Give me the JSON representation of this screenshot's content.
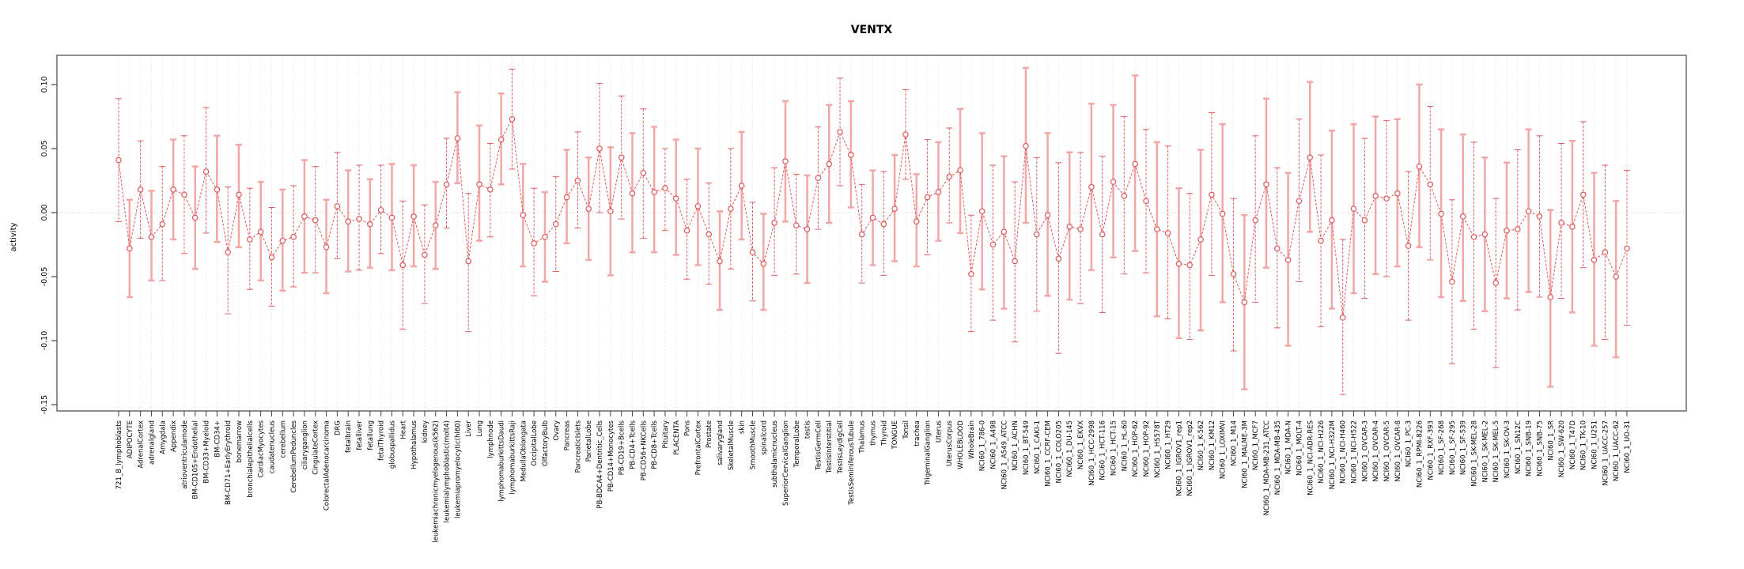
{
  "chart_data": {
    "type": "line",
    "title": "VENTX",
    "ylabel": "activity",
    "xlabel": "",
    "legend": "none",
    "grid": "vertical dotted gridline per category; dotted horizontal line at 0",
    "point_style": "open circles connected by dashed red line, with error bars",
    "ylim": [
      -0.1549,
      0.1228
    ],
    "yticks": [
      0.1,
      0.05,
      0.0,
      -0.05,
      -0.1,
      -0.15
    ],
    "ytick_labels": [
      "0.10",
      "0.05",
      "0.00",
      "-0.05",
      "-0.10",
      "-0.15"
    ],
    "colors": {
      "series": "#e05858",
      "error_bar_dashed": "#dd6060",
      "error_bar_thick": "#f2a6a6",
      "grid": "#e3e3e3",
      "zero_line": "#cfcfcf",
      "box": "#6a6a6a",
      "tick": "#444444",
      "text": "#000000"
    },
    "categories": [
      "721_B_lymphoblasts",
      "ADIPOCYTE",
      "AdrenalCortex",
      "adrenalgland",
      "Amygdala",
      "Appendix",
      "atrioventricularnode",
      "BM-CD105+Endothelial",
      "BM-CD33+Myeloid",
      "BM-CD34+",
      "BM-CD71+EarlyErythroid",
      "bonemarrow",
      "bronchialepithelialcells",
      "CardiacMyocytes",
      "caudatenucleus",
      "cerebellum",
      "CerebellumPeduncles",
      "ciliaryganglion",
      "CingulateCortex",
      "ColorectalAdenocarcinoma",
      "DRG",
      "fetalbrain",
      "fetalliver",
      "fetallung",
      "fetalThyroid",
      "globuspallidus",
      "Heart",
      "Hypothalamus",
      "kidney",
      "leukemiachronicmyelogenous(k562)",
      "leukemialymphoblastic(molt4)",
      "leukemiapromyelocytic(hl60)",
      "Liver",
      "Lung",
      "lymphnode",
      "lymphomaburkittsDaudi",
      "lymphomaburkittsRaji",
      "MedullaOblongata",
      "OccipitalLobe",
      "OlfactoryBulb",
      "Ovary",
      "Pancreas",
      "PancreaticIslets",
      "ParietalLobe",
      "PB-BDCA4+Dentritic_Cells",
      "PB-CD14+Monocytes",
      "PB-CD19+Bcells",
      "PB-CD4+Tcells",
      "PB-CD56+NKCells",
      "PB-CD8+Tcells",
      "Pituitary",
      "PLACENTA",
      "Pons",
      "PrefrontalCortex",
      "Prostate",
      "salivarygland",
      "SkeletalMuscle",
      "skin",
      "SmoothMuscle",
      "spinalcord",
      "subthalamicnucleus",
      "SuperiorCervicalGanglion",
      "TemporalLobe",
      "testis",
      "TestisGermCell",
      "TestisInterstitial",
      "TestisLeydigCell",
      "TestisSeminiferousTubule",
      "Thalamus",
      "thymus",
      "Thyroid",
      "TONGUE",
      "Tonsil",
      "trachea",
      "TrigeminalGanglion",
      "Uterus",
      "UterusCorpus",
      "WHOLEBLOOD",
      "WholeBrain",
      "NCI60_1_786-0",
      "NCI60_1_A498",
      "NCI60_1_A549_ATCC",
      "NCI60_1_ACHN",
      "NCI60_1_BT-549",
      "NCI60_1_CAKI-1",
      "NCI60_1_CCRF-CEM",
      "NCI60_1_COLO205",
      "NCI60_1_DU-145",
      "NCI60_1_EKVX",
      "NCI60_1_HCC-2998",
      "NCI60_1_HCT-116",
      "NCI60_1_HCT-15",
      "NCI60_1_HL-60",
      "NCI60_1_HOP-62",
      "NCI60_1_HOP-92",
      "NCI60_1_HS578T",
      "NCI60_1_HT29",
      "NCI60_1_IGROV1_rep1",
      "NCI60_1_IGROV1_rep2",
      "NCI60_1_K-562",
      "NCI60_1_KM12",
      "NCI60_1_LOXIMVI",
      "NCI60_1_M14",
      "NCI60_1_MALME-3M",
      "NCI60_1_MCF7",
      "NCI60_1_MDA-MB-231_ATCC",
      "NCI60_1_MDA-MB-435",
      "NCI60_1_MDA-N",
      "NCI60_1_MOLT-4",
      "NCI60_1_NCI-ADR-RES",
      "NCI60_1_NCI-H226",
      "NCI60_1_NCI-H322M",
      "NCI60_1_NCI-H460",
      "NCI60_1_NCI-H522",
      "NCI60_1_OVCAR-3",
      "NCI60_1_OVCAR-4",
      "NCI60_1_OVCAR-5",
      "NCI60_1_OVCAR-8",
      "NCI60_1_PC-3",
      "NCI60_1_RPMI-8226",
      "NCI60_1_RXF-393",
      "NCI60_1_SF-268",
      "NCI60_1_SF-295",
      "NCI60_1_SF-539",
      "NCI60_1_SK-MEL-28",
      "NCI60_1_SK-MEL-2",
      "NCI60_1_SK-MEL-5",
      "NCI60_1_SK-OV-3",
      "NCI60_1_SN12C",
      "NCI60_1_SNB-19",
      "NCI60_1_SNB-75",
      "NCI60_1_SR",
      "NCI60_1_SW-620",
      "NCI60_1_T47D",
      "NCI60_1_TK-10",
      "NCI60_1_U251",
      "NCI60_1_UACC-257",
      "NCI60_1_UACC-62",
      "NCI60_1_UO-31"
    ],
    "values": [
      0.041,
      -0.028,
      0.018,
      -0.019,
      -0.009,
      0.018,
      0.014,
      -0.004,
      0.032,
      0.018,
      -0.031,
      0.014,
      -0.021,
      -0.015,
      -0.035,
      -0.022,
      -0.019,
      -0.003,
      -0.006,
      -0.027,
      0.005,
      -0.007,
      -0.005,
      -0.009,
      0.002,
      -0.004,
      -0.041,
      -0.003,
      -0.033,
      -0.01,
      0.022,
      0.058,
      -0.038,
      0.022,
      0.018,
      0.057,
      0.073,
      -0.002,
      -0.024,
      -0.019,
      -0.009,
      0.012,
      0.025,
      0.003,
      0.05,
      0.001,
      0.043,
      0.015,
      0.031,
      0.016,
      0.019,
      0.011,
      -0.014,
      0.005,
      -0.017,
      -0.038,
      0.003,
      0.021,
      -0.031,
      -0.04,
      -0.008,
      0.04,
      -0.01,
      -0.013,
      0.027,
      0.038,
      0.063,
      0.045,
      -0.017,
      -0.004,
      -0.009,
      0.003,
      0.061,
      -0.007,
      0.012,
      0.016,
      0.028,
      0.033,
      -0.048,
      0.001,
      -0.025,
      -0.015,
      -0.038,
      0.052,
      -0.017,
      -0.002,
      -0.036,
      -0.011,
      -0.013,
      0.02,
      -0.017,
      0.024,
      0.013,
      0.038,
      0.009,
      -0.013,
      -0.016,
      -0.04,
      -0.041,
      -0.021,
      0.014,
      -0.001,
      -0.048,
      -0.07,
      -0.006,
      0.022,
      -0.028,
      -0.037,
      0.009,
      0.043,
      -0.022,
      -0.006,
      -0.082,
      0.003,
      -0.006,
      0.013,
      0.011,
      0.015,
      -0.026,
      0.036,
      0.022,
      -0.001,
      -0.054,
      -0.003,
      -0.019,
      -0.017,
      -0.055,
      -0.014,
      -0.013,
      0.001,
      -0.003,
      -0.066,
      -0.008,
      -0.011,
      0.014,
      -0.037,
      -0.031,
      -0.05,
      -0.028
    ],
    "err_low": [
      -0.007,
      -0.066,
      -0.02,
      -0.053,
      -0.053,
      -0.021,
      -0.032,
      -0.044,
      -0.016,
      -0.023,
      -0.079,
      -0.027,
      -0.06,
      -0.053,
      -0.073,
      -0.061,
      -0.058,
      -0.047,
      -0.047,
      -0.063,
      -0.036,
      -0.046,
      -0.045,
      -0.043,
      -0.032,
      -0.045,
      -0.091,
      -0.042,
      -0.071,
      -0.044,
      -0.012,
      0.023,
      -0.093,
      -0.022,
      -0.019,
      0.022,
      0.034,
      -0.042,
      -0.065,
      -0.054,
      -0.046,
      -0.024,
      -0.012,
      -0.037,
      0.0,
      -0.049,
      -0.005,
      -0.031,
      -0.02,
      -0.031,
      -0.014,
      -0.033,
      -0.052,
      -0.041,
      -0.056,
      -0.076,
      -0.044,
      -0.021,
      -0.069,
      -0.076,
      -0.049,
      -0.007,
      -0.048,
      -0.055,
      -0.013,
      -0.008,
      0.021,
      0.004,
      -0.055,
      -0.041,
      -0.049,
      -0.038,
      0.026,
      -0.042,
      -0.033,
      -0.022,
      -0.008,
      -0.016,
      -0.093,
      -0.06,
      -0.084,
      -0.075,
      -0.101,
      -0.008,
      -0.077,
      -0.065,
      -0.11,
      -0.068,
      -0.071,
      -0.045,
      -0.078,
      -0.035,
      -0.048,
      -0.03,
      -0.047,
      -0.081,
      -0.083,
      -0.098,
      -0.099,
      -0.092,
      -0.049,
      -0.07,
      -0.108,
      -0.138,
      -0.07,
      -0.043,
      -0.09,
      -0.104,
      -0.054,
      -0.015,
      -0.089,
      -0.075,
      -0.142,
      -0.063,
      -0.067,
      -0.048,
      -0.05,
      -0.042,
      -0.084,
      -0.027,
      -0.037,
      -0.066,
      -0.118,
      -0.069,
      -0.091,
      -0.077,
      -0.121,
      -0.067,
      -0.076,
      -0.062,
      -0.066,
      -0.136,
      -0.067,
      -0.078,
      -0.043,
      -0.104,
      -0.099,
      -0.113,
      -0.088
    ],
    "err_high": [
      0.089,
      0.01,
      0.056,
      0.017,
      0.036,
      0.057,
      0.06,
      0.036,
      0.082,
      0.06,
      0.02,
      0.053,
      0.019,
      0.024,
      0.004,
      0.018,
      0.021,
      0.041,
      0.036,
      0.01,
      0.047,
      0.033,
      0.037,
      0.026,
      0.037,
      0.038,
      0.009,
      0.037,
      0.006,
      0.024,
      0.058,
      0.094,
      0.015,
      0.068,
      0.054,
      0.093,
      0.112,
      0.038,
      0.019,
      0.016,
      0.028,
      0.049,
      0.063,
      0.043,
      0.101,
      0.051,
      0.091,
      0.062,
      0.081,
      0.067,
      0.05,
      0.057,
      0.026,
      0.05,
      0.023,
      0.001,
      0.05,
      0.063,
      0.008,
      -0.001,
      0.035,
      0.087,
      0.03,
      0.029,
      0.067,
      0.084,
      0.105,
      0.087,
      0.022,
      0.033,
      0.032,
      0.045,
      0.096,
      0.03,
      0.057,
      0.055,
      0.066,
      0.081,
      -0.002,
      0.062,
      0.037,
      0.044,
      0.024,
      0.113,
      0.043,
      0.062,
      0.039,
      0.047,
      0.047,
      0.085,
      0.044,
      0.084,
      0.075,
      0.107,
      0.065,
      0.055,
      0.052,
      0.019,
      0.015,
      0.049,
      0.078,
      0.069,
      0.011,
      -0.002,
      0.06,
      0.089,
      0.035,
      0.031,
      0.073,
      0.102,
      0.045,
      0.064,
      -0.021,
      0.069,
      0.058,
      0.075,
      0.072,
      0.073,
      0.032,
      0.1,
      0.083,
      0.065,
      0.01,
      0.061,
      0.055,
      0.043,
      0.011,
      0.039,
      0.049,
      0.065,
      0.06,
      0.002,
      0.054,
      0.056,
      0.071,
      0.031,
      0.037,
      0.009,
      0.033
    ]
  }
}
